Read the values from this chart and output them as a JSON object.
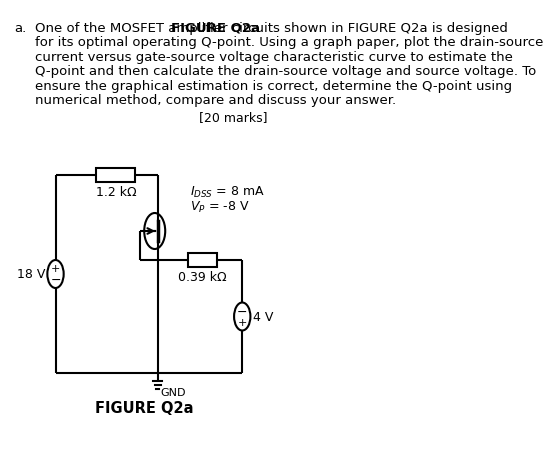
{
  "background_color": "#ffffff",
  "label_a": "a.",
  "marks_text": "[20 marks]",
  "figure_label": "FIGURE Q2a",
  "R1_label": "1.2 kΩ",
  "R2_label": "0.39 kΩ",
  "V1_label": "18 V",
  "V2_label": "4 V",
  "GND_label": "GND",
  "line_color": "#000000",
  "text_color": "#000000",
  "font_size_body": 9.5,
  "font_size_labels": 9.0,
  "font_size_marks": 9.0,
  "font_size_figure": 10.5,
  "para_lines": [
    "One of the MOSFET amplifier circuits shown in FIGURE Q2a is designed",
    "for its optimal operating Q-point. Using a graph paper, plot the drain-source",
    "current versus gate-source voltage characteristic curve to estimate the",
    "Q-point and then calculate the drain-source voltage and source voltage. To",
    "ensure the graphical estimation is correct, determine the Q-point using",
    "numerical method, compare and discuss your answer."
  ],
  "bold_word": "FIGURE Q2a",
  "bold_word_pre": "One of the MOSFET amplifier circuits shown in "
}
